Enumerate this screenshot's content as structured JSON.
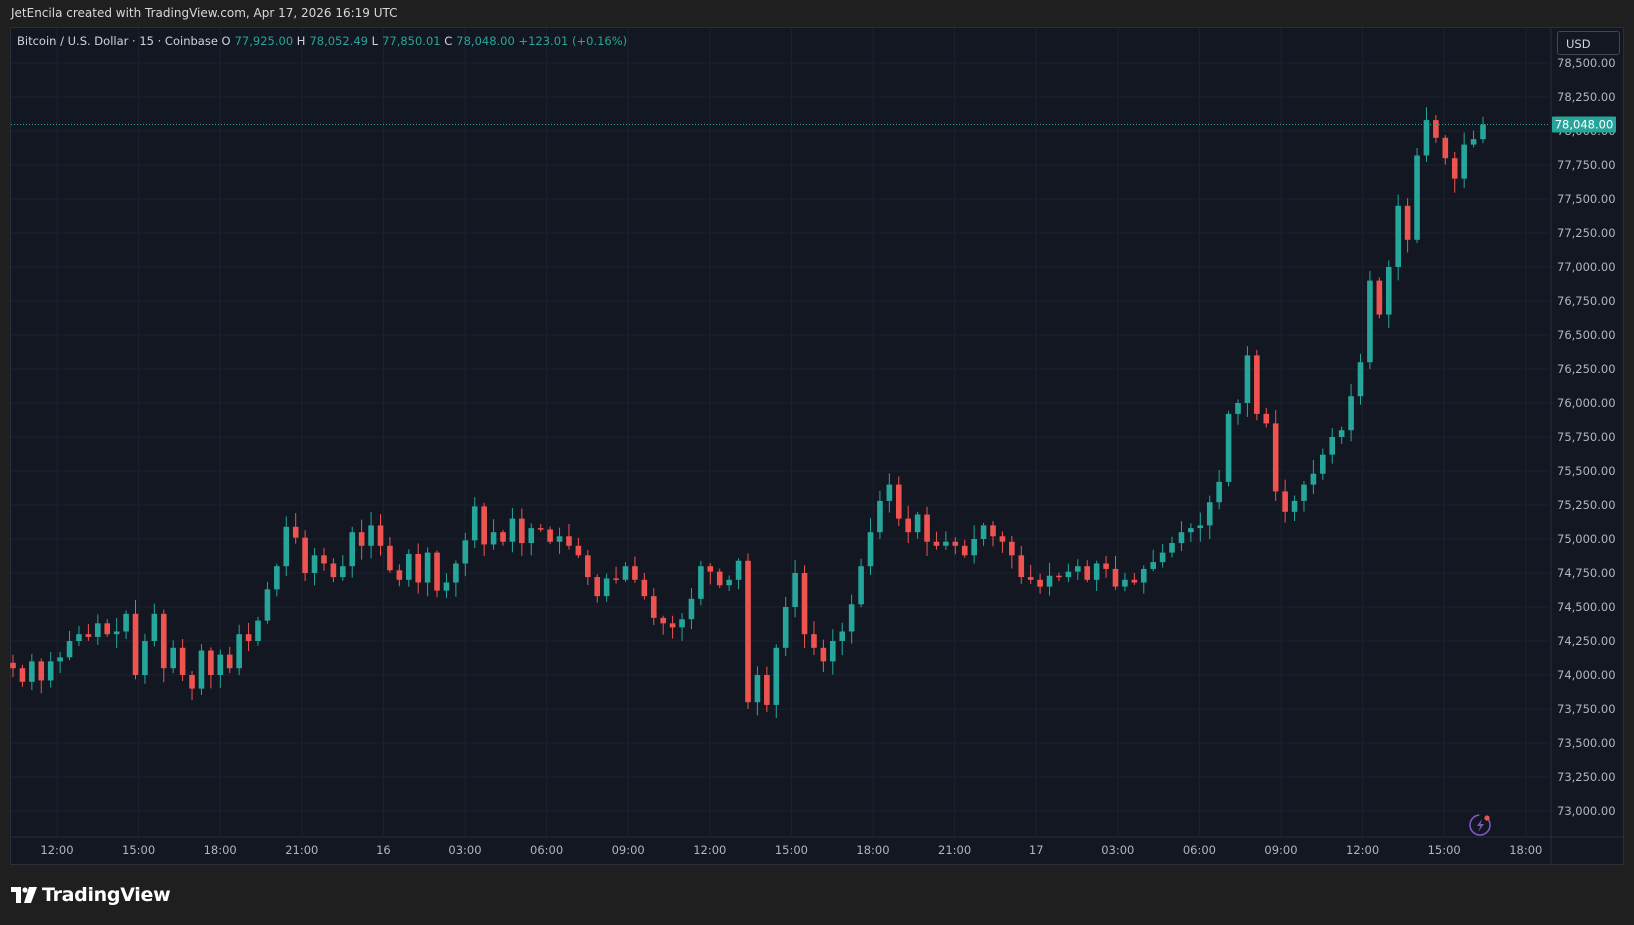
{
  "caption": "JetEncila created with TradingView.com, Apr 17, 2026 16:19 UTC",
  "legend": {
    "symbol": "Bitcoin / U.S. Dollar · 15 · Coinbase",
    "o_label": "O",
    "o": "77,925.00",
    "h_label": "H",
    "h": "78,052.49",
    "l_label": "L",
    "l": "77,850.01",
    "c_label": "C",
    "c": "78,048.00",
    "change": "+123.01 (+0.16%)"
  },
  "currency_button": "USD",
  "brand": "TradingView",
  "icons": {
    "logo": "tradingview-logo-icon",
    "alert": "lightning-alert-icon"
  },
  "colors": {
    "up": "#26a69a",
    "down": "#ef5350",
    "background": "#131722",
    "grid": "#1e222d"
  },
  "chart_data": {
    "type": "candlestick",
    "title": "Bitcoin / U.S. Dollar · 15 · Coinbase",
    "interval": "15",
    "last_price": 78048.0,
    "last_price_label": "78,048.00",
    "ylim": [
      72800,
      78650
    ],
    "y_ticks": [
      73000,
      73250,
      73500,
      73750,
      74000,
      74250,
      74500,
      74750,
      75000,
      75250,
      75500,
      75750,
      76000,
      76250,
      76500,
      76750,
      77000,
      77250,
      77500,
      77750,
      78000,
      78250,
      78500
    ],
    "y_tick_labels": [
      "73,000.00",
      "73,250.00",
      "73,500.00",
      "73,750.00",
      "74,000.00",
      "74,250.00",
      "74,500.00",
      "74,750.00",
      "75,000.00",
      "75,250.00",
      "75,500.00",
      "75,750.00",
      "76,000.00",
      "76,250.00",
      "76,500.00",
      "76,750.00",
      "77,000.00",
      "77,250.00",
      "77,500.00",
      "77,750.00",
      "78,000.00",
      "78,250.00",
      "78,500.00"
    ],
    "x_tick_labels": [
      "12:00",
      "15:00",
      "18:00",
      "21:00",
      "16",
      "03:00",
      "06:00",
      "09:00",
      "12:00",
      "15:00",
      "18:00",
      "21:00",
      "17",
      "03:00",
      "06:00",
      "09:00",
      "12:00",
      "15:00",
      "18:00"
    ],
    "close_path": [
      74050,
      73950,
      74100,
      73960,
      74100,
      74130,
      74250,
      74300,
      74280,
      74380,
      74300,
      74320,
      74450,
      74000,
      74250,
      74450,
      74050,
      74200,
      74000,
      73900,
      74180,
      74000,
      74150,
      74050,
      74300,
      74250,
      74400,
      74630,
      74800,
      75090,
      75010,
      74750,
      74880,
      74820,
      74720,
      74800,
      75050,
      74950,
      75100,
      74950,
      74770,
      74700,
      74890,
      74680,
      74900,
      74620,
      74680,
      74820,
      74990,
      75240,
      74960,
      75050,
      74980,
      75150,
      74970,
      75080,
      75070,
      74980,
      75020,
      74950,
      74880,
      74720,
      74580,
      74710,
      74700,
      74800,
      74700,
      74580,
      74420,
      74380,
      74350,
      74410,
      74560,
      74800,
      74760,
      74660,
      74700,
      74840,
      73800,
      74000,
      73780,
      74200,
      74500,
      74750,
      74300,
      74200,
      74100,
      74250,
      74320,
      74520,
      74800,
      75050,
      75280,
      75400,
      75150,
      75050,
      75180,
      74980,
      74950,
      74980,
      74950,
      74880,
      75000,
      75100,
      75020,
      74980,
      74880,
      74720,
      74700,
      74650,
      74730,
      74720,
      74760,
      74800,
      74700,
      74820,
      74780,
      74650,
      74700,
      74680,
      74780,
      74830,
      74900,
      74970,
      75050,
      75080,
      75100,
      75270,
      75420,
      75920,
      76000,
      76350,
      75920,
      75850,
      75350,
      75200,
      75280,
      75400,
      75480,
      75620,
      75750,
      75800,
      76050,
      76300,
      76900,
      76650,
      77000,
      77450,
      77200,
      77820,
      78080,
      77950,
      77800,
      77650,
      77900,
      77940,
      78048
    ]
  }
}
